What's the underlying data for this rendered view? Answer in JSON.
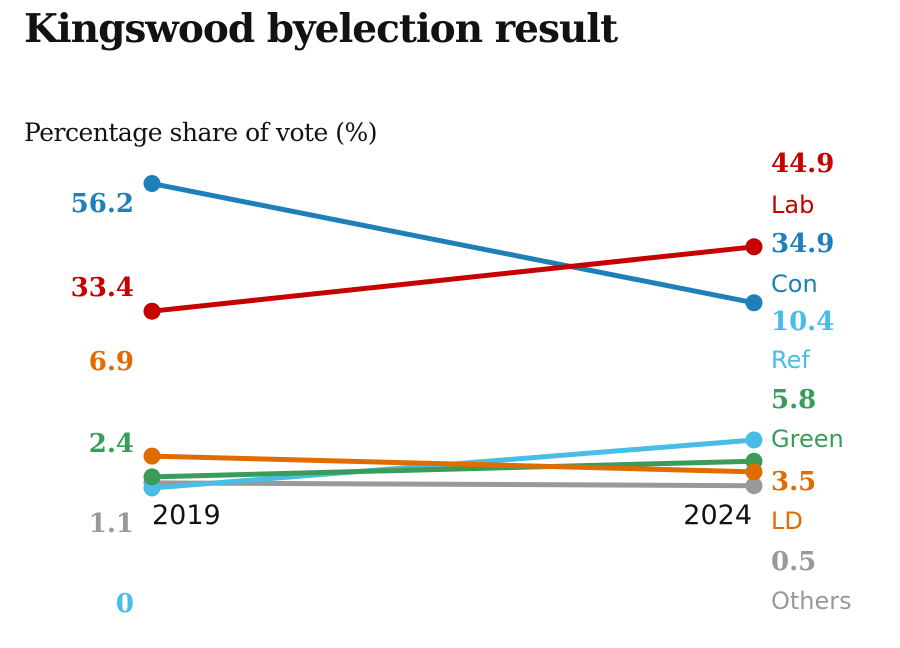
{
  "title": "Kingswood byelection result",
  "chart_data": {
    "type": "line",
    "title": "Kingswood byelection result",
    "ylabel": "Percentage share of vote (%)",
    "x": [
      "2019",
      "2024"
    ],
    "series": [
      {
        "key": "con",
        "name": "Con",
        "color": "#1f80b8",
        "values": [
          56.2,
          34.9
        ],
        "labels": [
          "56.2",
          "34.9"
        ]
      },
      {
        "key": "lab",
        "name": "Lab",
        "color": "#c70000",
        "values": [
          33.4,
          44.9
        ],
        "labels": [
          "33.4",
          "44.9"
        ]
      },
      {
        "key": "ld",
        "name": "LD",
        "color": "#e06c00",
        "values": [
          6.9,
          3.5
        ],
        "labels": [
          "6.9",
          "3.5"
        ]
      },
      {
        "key": "green",
        "name": "Green",
        "color": "#3b9c5a",
        "values": [
          2.4,
          5.8
        ],
        "labels": [
          "2.4",
          "5.8"
        ]
      },
      {
        "key": "ref",
        "name": "Ref",
        "color": "#49bde6",
        "values": [
          0,
          10.4
        ],
        "labels": [
          "0",
          "10.4"
        ]
      },
      {
        "key": "others",
        "name": "Others",
        "color": "#999999",
        "values": [
          1.1,
          0.5
        ],
        "labels": [
          "1.1",
          "0.5"
        ]
      }
    ]
  }
}
